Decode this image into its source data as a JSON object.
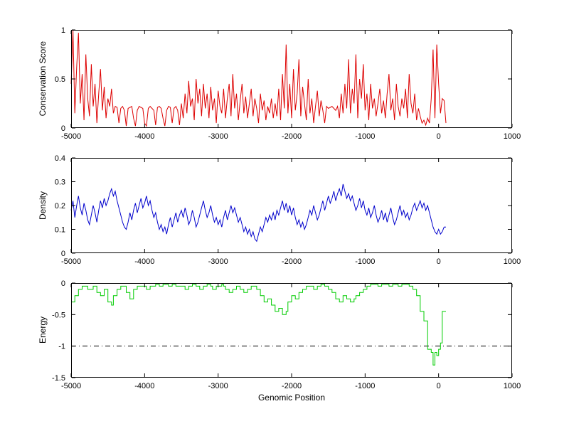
{
  "figure": {
    "background": "#ffffff",
    "xlabel": "Genomic Position"
  },
  "chart_data": [
    {
      "type": "line",
      "ylabel": "Conservation Score",
      "color": "#dd0000",
      "xlim": [
        -5000,
        1000
      ],
      "ylim": [
        0,
        1
      ],
      "xticks": [
        -5000,
        -4000,
        -3000,
        -2000,
        -1000,
        0,
        1000
      ],
      "yticks": [
        0,
        0.5,
        1
      ],
      "x_start": -5000,
      "x_step": 25,
      "values": [
        0.45,
        1.0,
        0.15,
        0.62,
        0.97,
        0.25,
        0.55,
        0.08,
        0.75,
        0.3,
        0.12,
        0.65,
        0.22,
        0.45,
        0.05,
        0.35,
        0.6,
        0.18,
        0.42,
        0.1,
        0.3,
        0.22,
        0.4,
        0.15,
        0.22,
        0.21,
        0.05,
        0.2,
        0.22,
        0.18,
        0.02,
        0.2,
        0.21,
        0.22,
        0.1,
        0.02,
        0.18,
        0.22,
        0.21,
        0.2,
        0.05,
        0.02,
        0.2,
        0.22,
        0.2,
        0.18,
        0.03,
        0.21,
        0.22,
        0.2,
        0.1,
        0.02,
        0.18,
        0.22,
        0.21,
        0.05,
        0.2,
        0.22,
        0.18,
        0.03,
        0.25,
        0.1,
        0.35,
        0.15,
        0.48,
        0.22,
        0.3,
        0.08,
        0.5,
        0.25,
        0.4,
        0.12,
        0.45,
        0.2,
        0.35,
        0.1,
        0.42,
        0.18,
        0.3,
        0.05,
        0.38,
        0.22,
        0.15,
        0.4,
        0.1,
        0.3,
        0.45,
        0.12,
        0.55,
        0.2,
        0.35,
        0.08,
        0.28,
        0.45,
        0.15,
        0.32,
        0.1,
        0.25,
        0.4,
        0.12,
        0.3,
        0.2,
        0.05,
        0.35,
        0.18,
        0.28,
        0.08,
        0.22,
        0.15,
        0.3,
        0.1,
        0.25,
        0.12,
        0.4,
        0.08,
        0.55,
        0.2,
        0.85,
        0.15,
        0.45,
        0.1,
        0.6,
        0.18,
        0.35,
        0.7,
        0.12,
        0.42,
        0.25,
        0.08,
        0.5,
        0.15,
        0.3,
        0.05,
        0.22,
        0.38,
        0.12,
        0.28,
        0.18,
        0.05,
        0.22,
        0.2,
        0.21,
        0.22,
        0.2,
        0.18,
        0.22,
        0.1,
        0.35,
        0.15,
        0.45,
        0.2,
        0.7,
        0.15,
        0.4,
        0.25,
        0.75,
        0.1,
        0.5,
        0.3,
        0.65,
        0.18,
        0.35,
        0.08,
        0.45,
        0.2,
        0.3,
        0.12,
        0.25,
        0.4,
        0.15,
        0.28,
        0.1,
        0.35,
        0.55,
        0.18,
        0.3,
        0.08,
        0.45,
        0.22,
        0.12,
        0.3,
        0.2,
        0.4,
        0.1,
        0.55,
        0.25,
        0.15,
        0.35,
        0.08,
        0.2,
        0.12,
        0.05,
        0.08,
        0.03,
        0.1,
        0.05,
        0.3,
        0.8,
        0.1,
        0.85,
        0.45,
        0.15,
        0.3,
        0.28,
        0.05
      ]
    },
    {
      "type": "line",
      "ylabel": "Density",
      "color": "#0000cc",
      "xlim": [
        -5000,
        1000
      ],
      "ylim": [
        0,
        0.4
      ],
      "xticks": [
        -5000,
        -4000,
        -3000,
        -2000,
        -1000,
        0,
        1000
      ],
      "yticks": [
        0,
        0.1,
        0.2,
        0.3,
        0.4
      ],
      "x_start": -5000,
      "x_step": 25,
      "values": [
        0.18,
        0.22,
        0.15,
        0.2,
        0.24,
        0.19,
        0.16,
        0.21,
        0.18,
        0.14,
        0.12,
        0.16,
        0.2,
        0.17,
        0.13,
        0.18,
        0.22,
        0.19,
        0.23,
        0.2,
        0.22,
        0.25,
        0.27,
        0.24,
        0.26,
        0.22,
        0.19,
        0.16,
        0.13,
        0.11,
        0.1,
        0.13,
        0.17,
        0.14,
        0.18,
        0.21,
        0.17,
        0.2,
        0.23,
        0.19,
        0.21,
        0.24,
        0.2,
        0.22,
        0.18,
        0.15,
        0.17,
        0.13,
        0.1,
        0.12,
        0.09,
        0.11,
        0.08,
        0.12,
        0.15,
        0.11,
        0.14,
        0.17,
        0.13,
        0.16,
        0.18,
        0.15,
        0.19,
        0.16,
        0.12,
        0.14,
        0.18,
        0.15,
        0.11,
        0.13,
        0.16,
        0.19,
        0.22,
        0.18,
        0.15,
        0.17,
        0.2,
        0.16,
        0.13,
        0.15,
        0.12,
        0.14,
        0.11,
        0.15,
        0.18,
        0.14,
        0.17,
        0.2,
        0.17,
        0.19,
        0.16,
        0.13,
        0.15,
        0.12,
        0.09,
        0.11,
        0.08,
        0.1,
        0.07,
        0.09,
        0.06,
        0.05,
        0.08,
        0.11,
        0.09,
        0.12,
        0.15,
        0.13,
        0.16,
        0.14,
        0.17,
        0.14,
        0.18,
        0.16,
        0.19,
        0.22,
        0.18,
        0.21,
        0.17,
        0.2,
        0.16,
        0.19,
        0.15,
        0.12,
        0.14,
        0.11,
        0.13,
        0.1,
        0.12,
        0.15,
        0.18,
        0.16,
        0.2,
        0.17,
        0.14,
        0.16,
        0.19,
        0.22,
        0.18,
        0.21,
        0.24,
        0.21,
        0.23,
        0.26,
        0.22,
        0.25,
        0.27,
        0.24,
        0.29,
        0.26,
        0.23,
        0.25,
        0.22,
        0.24,
        0.21,
        0.18,
        0.2,
        0.23,
        0.19,
        0.22,
        0.18,
        0.16,
        0.19,
        0.15,
        0.17,
        0.2,
        0.16,
        0.13,
        0.15,
        0.18,
        0.14,
        0.17,
        0.13,
        0.16,
        0.19,
        0.15,
        0.12,
        0.14,
        0.17,
        0.2,
        0.16,
        0.18,
        0.15,
        0.17,
        0.14,
        0.16,
        0.19,
        0.21,
        0.18,
        0.2,
        0.22,
        0.19,
        0.21,
        0.18,
        0.2,
        0.17,
        0.14,
        0.11,
        0.09,
        0.08,
        0.1,
        0.08,
        0.09,
        0.11,
        0.11
      ]
    },
    {
      "type": "line",
      "ylabel": "Energy",
      "color": "#00cc00",
      "step": true,
      "xlim": [
        -5000,
        1000
      ],
      "ylim": [
        -1.5,
        0
      ],
      "xticks": [
        -5000,
        -4000,
        -3000,
        -2000,
        -1000,
        0,
        1000
      ],
      "yticks": [
        -1.5,
        -1,
        -0.5,
        0
      ],
      "refline": {
        "y": -1,
        "style": "dash-dot",
        "color": "#000000"
      },
      "x_start": -5000,
      "x_step": 25,
      "values": [
        -0.3,
        -0.3,
        -0.2,
        -0.2,
        -0.1,
        -0.1,
        -0.05,
        -0.05,
        -0.05,
        -0.1,
        -0.1,
        -0.1,
        -0.05,
        -0.05,
        -0.15,
        -0.15,
        -0.2,
        -0.2,
        -0.1,
        -0.1,
        -0.3,
        -0.3,
        -0.35,
        -0.2,
        -0.2,
        -0.1,
        -0.1,
        -0.05,
        -0.05,
        -0.05,
        -0.15,
        -0.15,
        -0.25,
        -0.25,
        -0.1,
        -0.1,
        -0.05,
        -0.05,
        -0.05,
        -0.05,
        -0.05,
        -0.1,
        -0.1,
        -0.05,
        -0.05,
        -0.05,
        -0.02,
        -0.02,
        -0.05,
        -0.05,
        -0.02,
        -0.02,
        -0.02,
        -0.05,
        -0.05,
        -0.02,
        -0.02,
        -0.05,
        -0.05,
        -0.05,
        -0.05,
        -0.05,
        -0.1,
        -0.1,
        -0.05,
        -0.05,
        -0.02,
        -0.02,
        -0.05,
        -0.05,
        -0.1,
        -0.1,
        -0.05,
        -0.05,
        -0.02,
        -0.02,
        -0.05,
        -0.1,
        -0.1,
        -0.05,
        -0.05,
        -0.05,
        -0.02,
        -0.05,
        -0.1,
        -0.1,
        -0.15,
        -0.15,
        -0.1,
        -0.1,
        -0.05,
        -0.05,
        -0.1,
        -0.1,
        -0.15,
        -0.15,
        -0.1,
        -0.1,
        -0.05,
        -0.05,
        -0.05,
        -0.1,
        -0.1,
        -0.2,
        -0.2,
        -0.3,
        -0.3,
        -0.25,
        -0.25,
        -0.35,
        -0.35,
        -0.45,
        -0.45,
        -0.4,
        -0.4,
        -0.5,
        -0.5,
        -0.45,
        -0.3,
        -0.3,
        -0.2,
        -0.2,
        -0.25,
        -0.25,
        -0.15,
        -0.15,
        -0.1,
        -0.1,
        -0.05,
        -0.05,
        -0.05,
        -0.05,
        -0.1,
        -0.1,
        -0.05,
        -0.05,
        -0.02,
        -0.02,
        -0.05,
        -0.05,
        -0.1,
        -0.1,
        -0.15,
        -0.15,
        -0.25,
        -0.25,
        -0.3,
        -0.3,
        -0.2,
        -0.2,
        -0.25,
        -0.25,
        -0.3,
        -0.3,
        -0.25,
        -0.2,
        -0.2,
        -0.15,
        -0.15,
        -0.1,
        -0.1,
        -0.05,
        -0.05,
        -0.02,
        -0.02,
        -0.02,
        -0.02,
        -0.05,
        -0.05,
        -0.02,
        -0.02,
        -0.02,
        -0.02,
        -0.05,
        -0.05,
        -0.02,
        -0.02,
        -0.02,
        -0.05,
        -0.05,
        -0.02,
        -0.02,
        -0.02,
        -0.02,
        -0.05,
        -0.05,
        -0.1,
        -0.1,
        -0.2,
        -0.2,
        -0.45,
        -0.45,
        -0.6,
        -0.6,
        -1.05,
        -1.05,
        -1.1,
        -1.3,
        -1.1,
        -1.15,
        -1.05,
        -0.95,
        -0.45,
        -0.45,
        -0.45
      ]
    }
  ]
}
